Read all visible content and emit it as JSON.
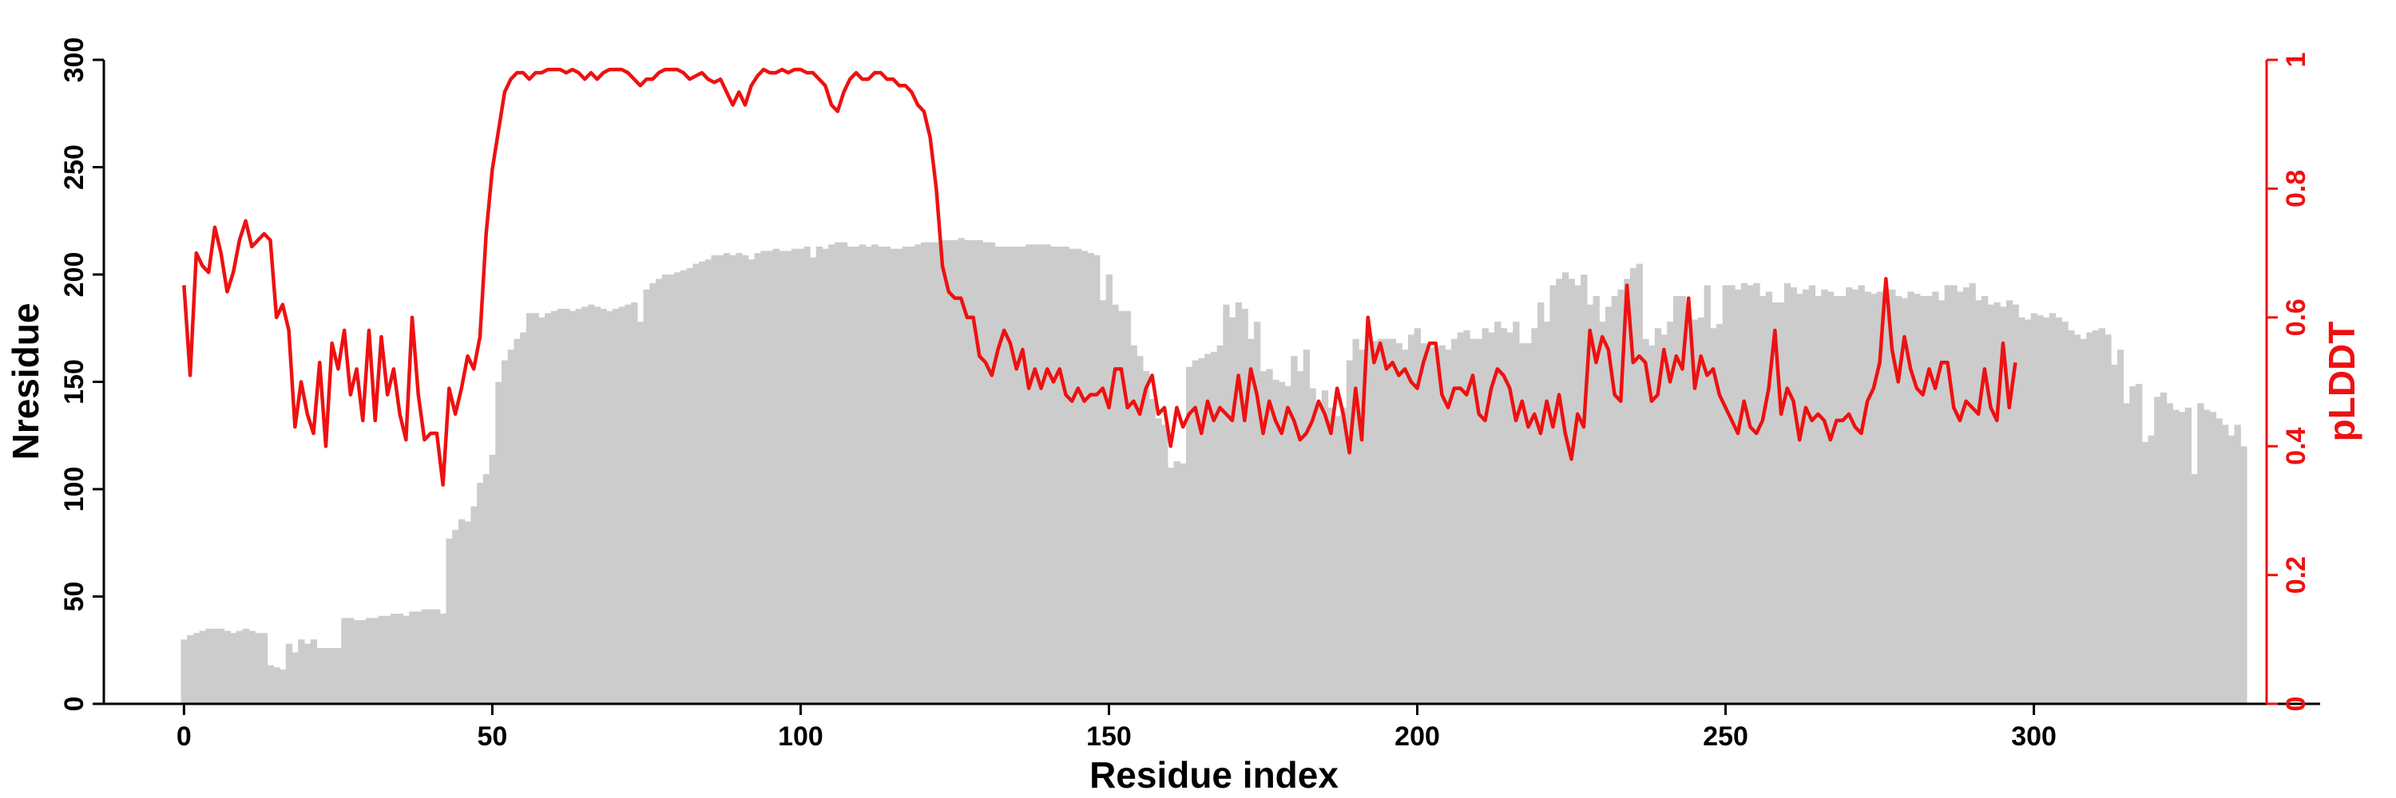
{
  "chart_data": {
    "type": "bar+line",
    "xlabel": "Residue index",
    "ylabel_left": "Nresidue",
    "ylabel_right": "pLDDT",
    "xlim": [
      -13,
      338
    ],
    "ylim_left": [
      0,
      300
    ],
    "ylim_right": [
      0,
      1
    ],
    "xticks": [
      0,
      50,
      100,
      150,
      200,
      250,
      300
    ],
    "yticks_left": [
      0,
      50,
      100,
      150,
      200,
      250,
      300
    ],
    "yticks_right": [
      0,
      0.2,
      0.4,
      0.6,
      0.8,
      1
    ],
    "grid": false,
    "colors": {
      "bars": "#cccccc",
      "line": "#ee1111",
      "axis": "#000000",
      "right_axis": "#ee1111"
    },
    "series": [
      {
        "kind": "bar",
        "x_start": 0,
        "values": [
          30,
          32,
          33,
          34,
          35,
          35,
          35,
          34,
          33,
          34,
          35,
          34,
          33,
          33,
          18,
          17,
          16,
          28,
          24,
          30,
          28,
          30,
          26,
          26,
          26,
          26,
          40,
          40,
          39,
          39,
          40,
          40,
          41,
          41,
          42,
          42,
          41,
          43,
          43,
          44,
          44,
          44,
          42,
          77,
          81,
          86,
          85,
          92,
          103,
          107,
          116,
          150,
          160,
          165,
          170,
          173,
          182,
          182,
          180,
          182,
          183,
          184,
          184,
          183,
          184,
          185,
          186,
          185,
          184,
          183,
          184,
          185,
          186,
          187,
          178,
          193,
          196,
          198,
          200,
          200,
          201,
          202,
          203,
          205,
          206,
          207,
          209,
          209,
          210,
          209,
          210,
          209,
          207,
          210,
          211,
          211,
          212,
          211,
          211,
          212,
          212,
          213,
          208,
          213,
          212,
          214,
          215,
          215,
          213,
          213,
          214,
          213,
          214,
          213,
          213,
          212,
          212,
          213,
          213,
          214,
          215,
          215,
          215,
          216,
          216,
          216,
          217,
          216,
          216,
          216,
          215,
          215,
          213,
          213,
          213,
          213,
          213,
          214,
          214,
          214,
          214,
          213,
          213,
          213,
          212,
          212,
          211,
          210,
          209,
          188,
          200,
          186,
          183,
          183,
          167,
          162,
          155,
          142,
          133,
          130,
          110,
          113,
          112,
          157,
          160,
          161,
          163,
          164,
          167,
          186,
          180,
          187,
          184,
          170,
          178,
          155,
          156,
          151,
          150,
          148,
          162,
          155,
          165,
          147,
          140,
          146,
          138,
          134,
          138,
          160,
          170,
          165,
          170,
          169,
          170,
          170,
          170,
          168,
          165,
          172,
          175,
          168,
          166,
          166,
          167,
          165,
          170,
          173,
          174,
          170,
          170,
          175,
          173,
          178,
          175,
          173,
          178,
          168,
          168,
          175,
          187,
          178,
          195,
          198,
          201,
          198,
          195,
          200,
          186,
          190,
          178,
          185,
          190,
          193,
          198,
          203,
          205,
          170,
          167,
          175,
          172,
          178,
          190,
          190,
          180,
          179,
          180,
          195,
          175,
          177,
          195,
          195,
          193,
          196,
          195,
          196,
          190,
          192,
          187,
          187,
          196,
          194,
          191,
          193,
          195,
          190,
          193,
          192,
          190,
          190,
          194,
          193,
          195,
          192,
          191,
          192,
          190,
          193,
          190,
          189,
          192,
          191,
          190,
          190,
          192,
          188,
          195,
          195,
          192,
          194,
          196,
          188,
          190,
          186,
          187,
          185,
          188,
          186,
          180,
          179,
          182,
          181,
          180,
          182,
          180,
          178,
          174,
          172,
          170,
          173,
          174,
          175,
          172,
          158,
          165,
          140,
          148,
          149,
          122,
          125,
          143,
          145,
          140,
          137,
          136,
          138,
          107,
          140,
          137,
          136,
          133,
          130,
          125,
          130,
          120
        ]
      },
      {
        "kind": "line",
        "x_start": 0,
        "values": [
          0.65,
          0.51,
          0.7,
          0.68,
          0.67,
          0.74,
          0.7,
          0.64,
          0.67,
          0.72,
          0.75,
          0.71,
          0.72,
          0.73,
          0.72,
          0.6,
          0.62,
          0.58,
          0.43,
          0.5,
          0.45,
          0.42,
          0.53,
          0.4,
          0.56,
          0.52,
          0.58,
          0.48,
          0.52,
          0.44,
          0.58,
          0.44,
          0.57,
          0.48,
          0.52,
          0.45,
          0.41,
          0.6,
          0.48,
          0.41,
          0.42,
          0.42,
          0.34,
          0.49,
          0.45,
          0.49,
          0.54,
          0.52,
          0.57,
          0.73,
          0.83,
          0.89,
          0.95,
          0.97,
          0.98,
          0.98,
          0.97,
          0.98,
          0.98,
          0.985,
          0.985,
          0.985,
          0.98,
          0.985,
          0.98,
          0.97,
          0.98,
          0.97,
          0.98,
          0.985,
          0.985,
          0.985,
          0.98,
          0.97,
          0.96,
          0.97,
          0.97,
          0.98,
          0.985,
          0.985,
          0.985,
          0.98,
          0.97,
          0.975,
          0.98,
          0.97,
          0.965,
          0.97,
          0.95,
          0.93,
          0.95,
          0.93,
          0.96,
          0.975,
          0.985,
          0.98,
          0.98,
          0.985,
          0.98,
          0.985,
          0.985,
          0.98,
          0.98,
          0.97,
          0.96,
          0.93,
          0.92,
          0.95,
          0.97,
          0.98,
          0.97,
          0.97,
          0.98,
          0.98,
          0.97,
          0.97,
          0.96,
          0.96,
          0.95,
          0.93,
          0.92,
          0.88,
          0.8,
          0.68,
          0.64,
          0.63,
          0.63,
          0.6,
          0.6,
          0.54,
          0.53,
          0.51,
          0.55,
          0.58,
          0.56,
          0.52,
          0.55,
          0.49,
          0.52,
          0.49,
          0.52,
          0.5,
          0.52,
          0.48,
          0.47,
          0.49,
          0.47,
          0.48,
          0.48,
          0.49,
          0.46,
          0.52,
          0.52,
          0.46,
          0.47,
          0.45,
          0.49,
          0.51,
          0.45,
          0.46,
          0.4,
          0.46,
          0.43,
          0.45,
          0.46,
          0.42,
          0.47,
          0.44,
          0.46,
          0.45,
          0.44,
          0.51,
          0.44,
          0.52,
          0.48,
          0.42,
          0.47,
          0.44,
          0.42,
          0.46,
          0.44,
          0.41,
          0.42,
          0.44,
          0.47,
          0.45,
          0.42,
          0.49,
          0.45,
          0.39,
          0.49,
          0.41,
          0.6,
          0.53,
          0.56,
          0.52,
          0.53,
          0.51,
          0.52,
          0.5,
          0.49,
          0.53,
          0.56,
          0.56,
          0.48,
          0.46,
          0.49,
          0.49,
          0.48,
          0.51,
          0.45,
          0.44,
          0.49,
          0.52,
          0.51,
          0.49,
          0.44,
          0.47,
          0.43,
          0.45,
          0.42,
          0.47,
          0.43,
          0.48,
          0.42,
          0.38,
          0.45,
          0.43,
          0.58,
          0.53,
          0.57,
          0.55,
          0.48,
          0.47,
          0.65,
          0.53,
          0.54,
          0.53,
          0.47,
          0.48,
          0.55,
          0.5,
          0.54,
          0.52,
          0.63,
          0.49,
          0.54,
          0.51,
          0.52,
          0.48,
          0.46,
          0.44,
          0.42,
          0.47,
          0.43,
          0.42,
          0.44,
          0.49,
          0.58,
          0.45,
          0.49,
          0.47,
          0.41,
          0.46,
          0.44,
          0.45,
          0.44,
          0.41,
          0.44,
          0.44,
          0.45,
          0.43,
          0.42,
          0.47,
          0.49,
          0.53,
          0.66,
          0.55,
          0.5,
          0.57,
          0.52,
          0.49,
          0.48,
          0.52,
          0.49,
          0.53,
          0.53,
          0.46,
          0.44,
          0.47,
          0.46,
          0.45,
          0.52,
          0.46,
          0.44,
          0.56,
          0.46,
          0.53
        ]
      }
    ]
  }
}
